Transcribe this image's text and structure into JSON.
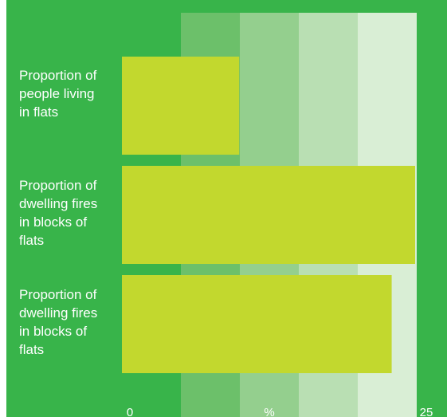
{
  "chart_data": {
    "type": "bar",
    "orientation": "horizontal",
    "categories": [
      "Proportion of people living in flats",
      "Proportion of dwelling fires in blocks of flats",
      "Proportion of dwelling fires in blocks of flats"
    ],
    "category_lines": [
      [
        "Proportion of",
        "people living",
        "in flats"
      ],
      [
        "Proportion of",
        "dwelling fires",
        "in blocks of",
        "flats"
      ],
      [
        "Proportion of",
        "dwelling fires",
        "in blocks of",
        "flats"
      ]
    ],
    "values": [
      10,
      25,
      23
    ],
    "xlim": [
      0,
      25
    ],
    "x_tick_labels": [
      "0",
      "%",
      "25"
    ],
    "band_count": 5,
    "grid": false,
    "colors": {
      "background": "#38b44a",
      "bar": "#c2d82e",
      "bands": [
        "#38b44a",
        "#6cc06a",
        "#94cf8e",
        "#b9dfb3",
        "#d9eed5"
      ],
      "text": "#ffffff"
    }
  }
}
